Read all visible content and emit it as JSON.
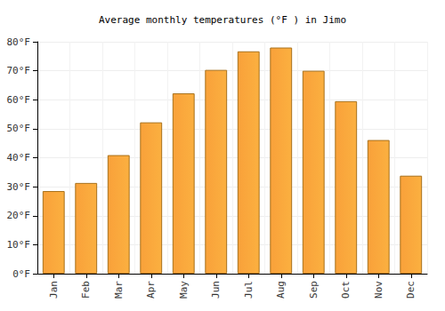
{
  "chart_data": {
    "type": "bar",
    "title": "Average monthly temperatures (°F ) in Jimo",
    "categories": [
      "Jan",
      "Feb",
      "Mar",
      "Apr",
      "May",
      "Jun",
      "Jul",
      "Aug",
      "Sep",
      "Oct",
      "Nov",
      "Dec"
    ],
    "values": [
      28.5,
      31.3,
      40.9,
      52.2,
      62.2,
      70.3,
      76.7,
      78.0,
      70.0,
      59.5,
      46.1,
      33.8
    ],
    "color": "#f9a13a",
    "ylim": [
      0,
      80
    ],
    "yticks": [
      {
        "value": 0,
        "label": "0°F"
      },
      {
        "value": 10,
        "label": "10°F"
      },
      {
        "value": 20,
        "label": "20°F"
      },
      {
        "value": 30,
        "label": "30°F"
      },
      {
        "value": 40,
        "label": "40°F"
      },
      {
        "value": 50,
        "label": "50°F"
      },
      {
        "value": 60,
        "label": "60°F"
      },
      {
        "value": 70,
        "label": "70°F"
      },
      {
        "value": 80,
        "label": "80°F"
      }
    ],
    "grid": true
  }
}
